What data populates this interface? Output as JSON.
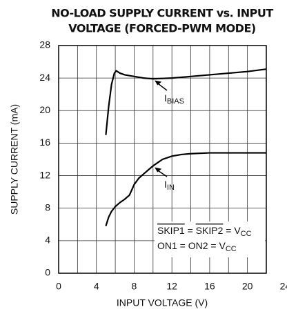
{
  "chart_data": {
    "type": "line",
    "title": [
      "NO-LOAD SUPPLY CURRENT vs. INPUT",
      "VOLTAGE (FORCED-PWM MODE)"
    ],
    "x_label": "INPUT VOLTAGE (V)",
    "y_label": "SUPPLY CURRENT (mA)",
    "xlim": [
      0,
      22
    ],
    "xticks": [
      0,
      4,
      8,
      12,
      16,
      20,
      24
    ],
    "ylim": [
      0,
      28
    ],
    "yticks": [
      0,
      4,
      8,
      12,
      16,
      20,
      24,
      28
    ],
    "grid": true,
    "series": [
      {
        "name": [
          {
            "text": "I",
            "style": "normal"
          },
          {
            "text": "BIAS",
            "style": "sub"
          }
        ],
        "color": "#000000",
        "x": [
          5,
          5.3,
          5.6,
          5.9,
          6.1,
          6.5,
          7,
          8,
          9,
          10,
          12,
          14,
          16,
          18,
          20,
          22
        ],
        "values": [
          17,
          20.5,
          23.2,
          24.6,
          24.9,
          24.6,
          24.4,
          24.2,
          24,
          23.9,
          24,
          24.2,
          24.4,
          24.6,
          24.8,
          25.1
        ]
      },
      {
        "name": [
          {
            "text": "I",
            "style": "normal"
          },
          {
            "text": "IN",
            "style": "sub"
          }
        ],
        "color": "#000000",
        "x": [
          5,
          5.3,
          5.6,
          6,
          6.5,
          7,
          7.5,
          8,
          8.5,
          9,
          10,
          11,
          12,
          13,
          14,
          16,
          18,
          20,
          22
        ],
        "values": [
          5.8,
          6.9,
          7.6,
          8.2,
          8.7,
          9.1,
          9.6,
          10.9,
          11.7,
          12.2,
          13.2,
          14,
          14.4,
          14.6,
          14.7,
          14.8,
          14.8,
          14.8,
          14.8
        ]
      }
    ],
    "note": [
      [
        {
          "text": "SKIP1",
          "style": "overline"
        },
        {
          "text": " = ",
          "style": "normal"
        },
        {
          "text": "SKIP2",
          "style": "overline"
        },
        {
          "text": " = V",
          "style": "normal"
        },
        {
          "text": "CC",
          "style": "sub"
        }
      ],
      [
        {
          "text": "ON1 = ON2 = V",
          "style": "normal"
        },
        {
          "text": "CC",
          "style": "sub"
        }
      ]
    ]
  }
}
